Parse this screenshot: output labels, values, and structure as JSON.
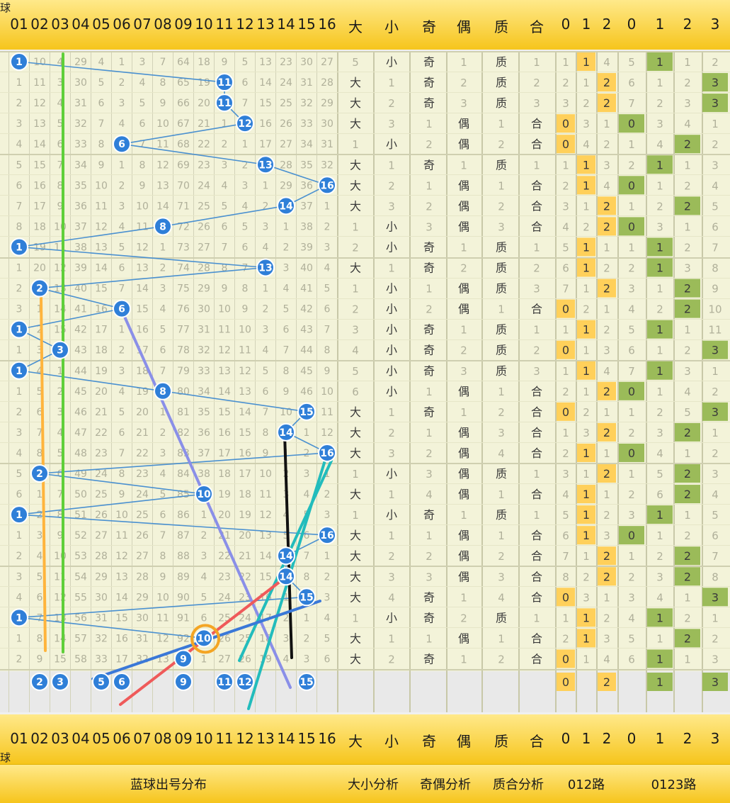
{
  "header": {
    "corner_label": "球",
    "ball_numbers": [
      "01",
      "02",
      "03",
      "04",
      "05",
      "06",
      "07",
      "08",
      "09",
      "10",
      "11",
      "12",
      "13",
      "14",
      "15",
      "16"
    ],
    "size": [
      "大",
      "小"
    ],
    "parity": [
      "奇",
      "偶"
    ],
    "prime": [
      "质",
      "合"
    ],
    "route012": [
      "0",
      "1",
      "2"
    ],
    "route0123": [
      "0",
      "1",
      "2",
      "3"
    ]
  },
  "footer": {
    "distribution": "蓝球出号分布",
    "size_analysis": "大小分析",
    "parity_analysis": "奇偶分析",
    "prime_analysis": "质合分析",
    "route012": "012路",
    "route0123": "0123路"
  },
  "colors": {
    "ball": "#2f7fd8",
    "header_top": "#ffe98a",
    "header_bottom": "#f6c51c",
    "grid_bg": "#f3f3d9",
    "route012_hit": "#ffd05a",
    "route0123_hit": "#9bbb59",
    "trend_green": "#5fcf3a",
    "trend_orange": "#ffb43c",
    "trend_purple": "#8a8fe8",
    "trend_black": "#111111",
    "trend_teal": "#22bcbc",
    "trend_red": "#ef5a5a",
    "circle_orange": "#f4a524"
  },
  "chart_data": {
    "type": "table",
    "title": "",
    "blue_ball_draws": [
      1,
      11,
      11,
      12,
      6,
      13,
      16,
      14,
      8,
      1,
      13,
      2,
      6,
      1,
      3,
      1,
      8,
      15,
      14,
      16,
      2,
      10,
      1,
      16,
      14,
      14,
      15,
      1,
      10,
      9
    ],
    "preview_balls": [
      2,
      3,
      5,
      6,
      9,
      11,
      12,
      15
    ],
    "rows": [
      {
        "miss": [
          null,
          10,
          4,
          29,
          4,
          1,
          3,
          7,
          64,
          18,
          9,
          5,
          13,
          23,
          30,
          27
        ],
        "size": [
          "5",
          "小"
        ],
        "par": [
          "奇",
          "1"
        ],
        "pri": [
          "质",
          "1"
        ],
        "r3": [
          "1",
          "1",
          "4"
        ],
        "r4": [
          "5",
          "1",
          "1",
          "2"
        ]
      },
      {
        "miss": [
          1,
          11,
          3,
          30,
          5,
          2,
          4,
          8,
          65,
          19,
          null,
          6,
          14,
          24,
          31,
          28
        ],
        "size": [
          "大",
          "1"
        ],
        "par": [
          "奇",
          "2"
        ],
        "pri": [
          "质",
          "2"
        ],
        "r3": [
          "2",
          "1",
          "2"
        ],
        "r4": [
          "6",
          "1",
          "2",
          "3"
        ]
      },
      {
        "miss": [
          2,
          12,
          4,
          31,
          6,
          3,
          5,
          9,
          66,
          20,
          null,
          7,
          15,
          25,
          32,
          29
        ],
        "size": [
          "大",
          "2"
        ],
        "par": [
          "奇",
          "3"
        ],
        "pri": [
          "质",
          "3"
        ],
        "r3": [
          "3",
          "2",
          "2"
        ],
        "r4": [
          "7",
          "2",
          "3",
          "3"
        ]
      },
      {
        "miss": [
          3,
          13,
          5,
          32,
          7,
          4,
          6,
          10,
          67,
          21,
          1,
          null,
          16,
          26,
          33,
          30
        ],
        "size": [
          "大",
          "3"
        ],
        "par": [
          "1",
          "偶"
        ],
        "pri": [
          "1",
          "合"
        ],
        "r3": [
          "0",
          "3",
          "1"
        ],
        "r4": [
          "0",
          "3",
          "4",
          "1"
        ]
      },
      {
        "miss": [
          4,
          14,
          6,
          33,
          8,
          null,
          7,
          11,
          68,
          22,
          2,
          1,
          17,
          27,
          34,
          31
        ],
        "size": [
          "1",
          "小"
        ],
        "par": [
          "2",
          "偶"
        ],
        "pri": [
          "2",
          "合"
        ],
        "r3": [
          "0",
          "4",
          "2"
        ],
        "r4": [
          "1",
          "4",
          "2",
          "2"
        ]
      },
      {
        "miss": [
          5,
          15,
          7,
          34,
          9,
          1,
          8,
          12,
          69,
          23,
          3,
          2,
          null,
          28,
          35,
          32
        ],
        "size": [
          "大",
          "1"
        ],
        "par": [
          "奇",
          "1"
        ],
        "pri": [
          "质",
          "1"
        ],
        "r3": [
          "1",
          "1",
          "3"
        ],
        "r4": [
          "2",
          "1",
          "1",
          "3"
        ]
      },
      {
        "miss": [
          6,
          16,
          8,
          35,
          10,
          2,
          9,
          13,
          70,
          24,
          4,
          3,
          1,
          29,
          36,
          null
        ],
        "size": [
          "大",
          "2"
        ],
        "par": [
          "1",
          "偶"
        ],
        "pri": [
          "1",
          "合"
        ],
        "r3": [
          "2",
          "1",
          "4"
        ],
        "r4": [
          "0",
          "1",
          "2",
          "4"
        ]
      },
      {
        "miss": [
          7,
          17,
          9,
          36,
          11,
          3,
          10,
          14,
          71,
          25,
          5,
          4,
          2,
          null,
          37,
          1
        ],
        "size": [
          "大",
          "3"
        ],
        "par": [
          "2",
          "偶"
        ],
        "pri": [
          "2",
          "合"
        ],
        "r3": [
          "3",
          "1",
          "2"
        ],
        "r4": [
          "1",
          "2",
          "2",
          "5"
        ]
      },
      {
        "miss": [
          8,
          18,
          10,
          37,
          12,
          4,
          11,
          null,
          72,
          26,
          6,
          5,
          3,
          1,
          38,
          2
        ],
        "size": [
          "1",
          "小"
        ],
        "par": [
          "3",
          "偶"
        ],
        "pri": [
          "3",
          "合"
        ],
        "r3": [
          "4",
          "2",
          "2"
        ],
        "r4": [
          "0",
          "3",
          "1",
          "6"
        ]
      },
      {
        "miss": [
          null,
          19,
          11,
          38,
          13,
          5,
          12,
          1,
          73,
          27,
          7,
          6,
          4,
          2,
          39,
          3
        ],
        "size": [
          "2",
          "小"
        ],
        "par": [
          "奇",
          "1"
        ],
        "pri": [
          "质",
          "1"
        ],
        "r3": [
          "5",
          "1",
          "1"
        ],
        "r4": [
          "1",
          "1",
          "2",
          "7"
        ]
      },
      {
        "miss": [
          1,
          20,
          12,
          39,
          14,
          6,
          13,
          2,
          74,
          28,
          8,
          7,
          null,
          3,
          40,
          4
        ],
        "size": [
          "大",
          "1"
        ],
        "par": [
          "奇",
          "2"
        ],
        "pri": [
          "质",
          "2"
        ],
        "r3": [
          "6",
          "1",
          "2"
        ],
        "r4": [
          "2",
          "1",
          "3",
          "8"
        ]
      },
      {
        "miss": [
          2,
          null,
          13,
          40,
          15,
          7,
          14,
          3,
          75,
          29,
          9,
          8,
          1,
          4,
          41,
          5
        ],
        "size": [
          "1",
          "小"
        ],
        "par": [
          "1",
          "偶"
        ],
        "pri": [
          "质",
          "3"
        ],
        "r3": [
          "7",
          "1",
          "2"
        ],
        "r4": [
          "3",
          "1",
          "2",
          "9"
        ]
      },
      {
        "miss": [
          3,
          1,
          14,
          41,
          16,
          null,
          15,
          4,
          76,
          30,
          10,
          9,
          2,
          5,
          42,
          6
        ],
        "size": [
          "2",
          "小"
        ],
        "par": [
          "2",
          "偶"
        ],
        "pri": [
          "1",
          "合"
        ],
        "r3": [
          "0",
          "2",
          "1"
        ],
        "r4": [
          "4",
          "2",
          "2",
          "10"
        ]
      },
      {
        "miss": [
          null,
          2,
          15,
          42,
          17,
          1,
          16,
          5,
          77,
          31,
          11,
          10,
          3,
          6,
          43,
          7
        ],
        "size": [
          "3",
          "小"
        ],
        "par": [
          "奇",
          "1"
        ],
        "pri": [
          "质",
          "1"
        ],
        "r3": [
          "1",
          "1",
          "2"
        ],
        "r4": [
          "5",
          "1",
          "1",
          "11"
        ]
      },
      {
        "miss": [
          1,
          3,
          null,
          43,
          18,
          2,
          17,
          6,
          78,
          32,
          12,
          11,
          4,
          7,
          44,
          8
        ],
        "size": [
          "4",
          "小"
        ],
        "par": [
          "奇",
          "2"
        ],
        "pri": [
          "质",
          "2"
        ],
        "r3": [
          "0",
          "1",
          "3"
        ],
        "r4": [
          "6",
          "1",
          "2",
          "3"
        ]
      },
      {
        "miss": [
          null,
          4,
          1,
          44,
          19,
          3,
          18,
          7,
          79,
          33,
          13,
          12,
          5,
          8,
          45,
          9
        ],
        "size": [
          "5",
          "小"
        ],
        "par": [
          "奇",
          "3"
        ],
        "pri": [
          "质",
          "3"
        ],
        "r3": [
          "1",
          "1",
          "4"
        ],
        "r4": [
          "7",
          "1",
          "3",
          "1"
        ]
      },
      {
        "miss": [
          1,
          5,
          2,
          45,
          20,
          4,
          19,
          null,
          80,
          34,
          14,
          13,
          6,
          9,
          46,
          10
        ],
        "size": [
          "6",
          "小"
        ],
        "par": [
          "1",
          "偶"
        ],
        "pri": [
          "1",
          "合"
        ],
        "r3": [
          "2",
          "1",
          "2"
        ],
        "r4": [
          "0",
          "1",
          "4",
          "2"
        ]
      },
      {
        "miss": [
          2,
          6,
          3,
          46,
          21,
          5,
          20,
          1,
          81,
          35,
          15,
          14,
          7,
          10,
          null,
          11
        ],
        "size": [
          "大",
          "1"
        ],
        "par": [
          "奇",
          "1"
        ],
        "pri": [
          "2",
          "合"
        ],
        "r3": [
          "0",
          "2",
          "1"
        ],
        "r4": [
          "1",
          "2",
          "5",
          "3"
        ]
      },
      {
        "miss": [
          3,
          7,
          4,
          47,
          22,
          6,
          21,
          2,
          82,
          36,
          16,
          15,
          8,
          null,
          1,
          12
        ],
        "size": [
          "大",
          "2"
        ],
        "par": [
          "1",
          "偶"
        ],
        "pri": [
          "3",
          "合"
        ],
        "r3": [
          "1",
          "3",
          "2"
        ],
        "r4": [
          "2",
          "3",
          "2",
          "1"
        ]
      },
      {
        "miss": [
          4,
          8,
          5,
          48,
          23,
          7,
          22,
          3,
          83,
          37,
          17,
          16,
          9,
          1,
          2,
          null
        ],
        "size": [
          "大",
          "3"
        ],
        "par": [
          "2",
          "偶"
        ],
        "pri": [
          "4",
          "合"
        ],
        "r3": [
          "2",
          "1",
          "1"
        ],
        "r4": [
          "0",
          "4",
          "1",
          "2"
        ]
      },
      {
        "miss": [
          5,
          null,
          6,
          49,
          24,
          8,
          23,
          4,
          84,
          38,
          18,
          17,
          10,
          2,
          3,
          1
        ],
        "size": [
          "1",
          "小"
        ],
        "par": [
          "3",
          "偶"
        ],
        "pri": [
          "质",
          "1"
        ],
        "r3": [
          "3",
          "1",
          "2"
        ],
        "r4": [
          "1",
          "5",
          "2",
          "3"
        ]
      },
      {
        "miss": [
          6,
          1,
          7,
          50,
          25,
          9,
          24,
          5,
          85,
          null,
          19,
          18,
          11,
          3,
          4,
          2
        ],
        "size": [
          "大",
          "1"
        ],
        "par": [
          "4",
          "偶"
        ],
        "pri": [
          "1",
          "合"
        ],
        "r3": [
          "4",
          "1",
          "1"
        ],
        "r4": [
          "2",
          "6",
          "2",
          "4"
        ]
      },
      {
        "miss": [
          null,
          2,
          8,
          51,
          26,
          10,
          25,
          6,
          86,
          1,
          20,
          19,
          12,
          4,
          5,
          3
        ],
        "size": [
          "1",
          "小"
        ],
        "par": [
          "奇",
          "1"
        ],
        "pri": [
          "质",
          "1"
        ],
        "r3": [
          "5",
          "1",
          "2"
        ],
        "r4": [
          "3",
          "1",
          "1",
          "5"
        ]
      },
      {
        "miss": [
          1,
          3,
          9,
          52,
          27,
          11,
          26,
          7,
          87,
          2,
          21,
          20,
          13,
          5,
          6,
          null
        ],
        "size": [
          "大",
          "1"
        ],
        "par": [
          "1",
          "偶"
        ],
        "pri": [
          "1",
          "合"
        ],
        "r3": [
          "6",
          "1",
          "3"
        ],
        "r4": [
          "0",
          "1",
          "2",
          "6"
        ]
      },
      {
        "miss": [
          2,
          4,
          10,
          53,
          28,
          12,
          27,
          8,
          88,
          3,
          22,
          21,
          14,
          null,
          7,
          1
        ],
        "size": [
          "大",
          "2"
        ],
        "par": [
          "2",
          "偶"
        ],
        "pri": [
          "2",
          "合"
        ],
        "r3": [
          "7",
          "1",
          "2"
        ],
        "r4": [
          "1",
          "2",
          "2",
          "7"
        ]
      },
      {
        "miss": [
          3,
          5,
          11,
          54,
          29,
          13,
          28,
          9,
          89,
          4,
          23,
          22,
          15,
          null,
          8,
          2
        ],
        "size": [
          "大",
          "3"
        ],
        "par": [
          "3",
          "偶"
        ],
        "pri": [
          "3",
          "合"
        ],
        "r3": [
          "8",
          "2",
          "2"
        ],
        "r4": [
          "2",
          "3",
          "2",
          "8"
        ]
      },
      {
        "miss": [
          4,
          6,
          12,
          55,
          30,
          14,
          29,
          10,
          90,
          5,
          24,
          23,
          16,
          1,
          null,
          3
        ],
        "size": [
          "大",
          "4"
        ],
        "par": [
          "奇",
          "1"
        ],
        "pri": [
          "4",
          "合"
        ],
        "r3": [
          "0",
          "3",
          "1"
        ],
        "r4": [
          "3",
          "4",
          "1",
          "3"
        ]
      },
      {
        "miss": [
          null,
          7,
          13,
          56,
          31,
          15,
          30,
          11,
          91,
          6,
          25,
          24,
          17,
          2,
          1,
          4
        ],
        "size": [
          "1",
          "小"
        ],
        "par": [
          "奇",
          "2"
        ],
        "pri": [
          "质",
          "1"
        ],
        "r3": [
          "1",
          "1",
          "2"
        ],
        "r4": [
          "4",
          "1",
          "2",
          "1"
        ]
      },
      {
        "miss": [
          1,
          8,
          14,
          57,
          32,
          16,
          31,
          12,
          92,
          null,
          26,
          25,
          18,
          3,
          2,
          5
        ],
        "size": [
          "大",
          "1"
        ],
        "par": [
          "1",
          "偶"
        ],
        "pri": [
          "1",
          "合"
        ],
        "r3": [
          "2",
          "1",
          "3"
        ],
        "r4": [
          "5",
          "1",
          "2",
          "2"
        ]
      },
      {
        "miss": [
          2,
          9,
          15,
          58,
          33,
          17,
          32,
          13,
          null,
          1,
          27,
          26,
          19,
          4,
          3,
          6
        ],
        "size": [
          "大",
          "2"
        ],
        "par": [
          "奇",
          "1"
        ],
        "pri": [
          "2",
          "合"
        ],
        "r3": [
          "0",
          "1",
          "4"
        ],
        "r4": [
          "6",
          "1",
          "1",
          "3"
        ]
      }
    ],
    "preview_route012": [
      "0",
      "",
      "2"
    ],
    "preview_route0123": [
      "",
      "1",
      "",
      "3"
    ]
  }
}
